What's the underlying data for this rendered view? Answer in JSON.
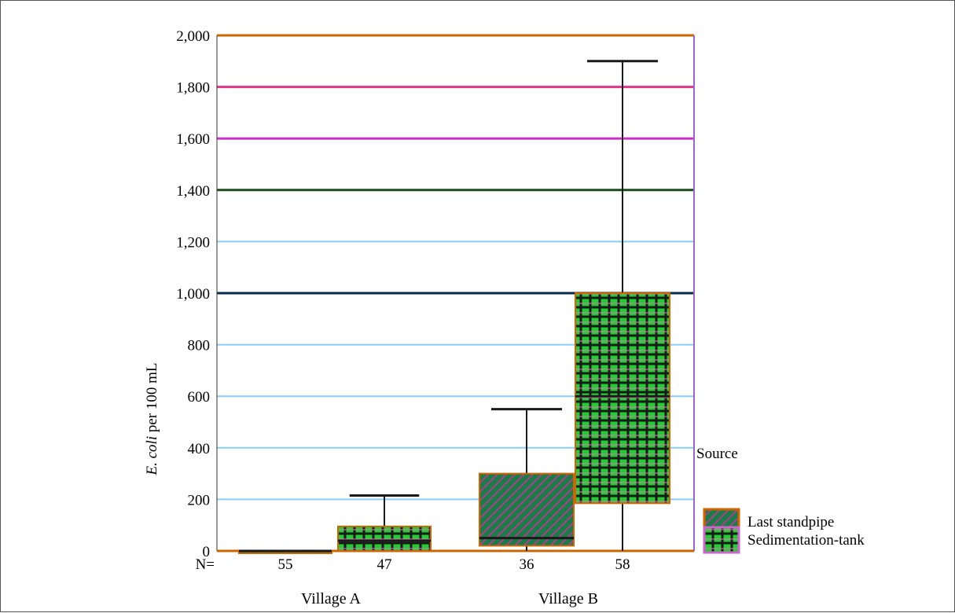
{
  "chart_data": {
    "type": "box",
    "ylabel_italic": "E. coli",
    "ylabel_rest": " per 100 mL",
    "ylim": [
      0,
      2000
    ],
    "yticks": [
      0,
      200,
      400,
      600,
      800,
      1000,
      1200,
      1400,
      1600,
      1800,
      2000
    ],
    "ytick_labels": [
      "0",
      "200",
      "400",
      "600",
      "800",
      "1,000",
      "1,200",
      "1,400",
      "1,600",
      "1,800",
      "2,000"
    ],
    "n_label": "N=",
    "groups": [
      "Village A",
      "Village B"
    ],
    "legend_title": "Source",
    "series": [
      {
        "name": "Last standpipe",
        "pattern": "diagonal"
      },
      {
        "name": "Sedimentation-tank",
        "pattern": "grid"
      }
    ],
    "boxes": [
      {
        "group": "Village A",
        "series": "Last standpipe",
        "n": "55",
        "min": 0,
        "q1": 0,
        "median": 0,
        "q3": 0,
        "max": 0
      },
      {
        "group": "Village A",
        "series": "Sedimentation-tank",
        "n": "47",
        "min": 0,
        "q1": 0,
        "median": 40,
        "q3": 95,
        "max": 215
      },
      {
        "group": "Village B",
        "series": "Last standpipe",
        "n": "36",
        "min": 0,
        "q1": 20,
        "median": 50,
        "q3": 300,
        "max": 550
      },
      {
        "group": "Village B",
        "series": "Sedimentation-tank",
        "n": "58",
        "min": 0,
        "q1": 185,
        "median": 600,
        "q3": 1000,
        "max": 1900
      }
    ],
    "gridline_colors": [
      "#87cefa",
      "#87cefa",
      "#87cefa",
      "#87cefa",
      "#87cefa",
      "#0a2a4a",
      "#87cefa",
      "#1a4d1a",
      "#cc33cc",
      "#e0338a",
      "#cc6600"
    ]
  }
}
